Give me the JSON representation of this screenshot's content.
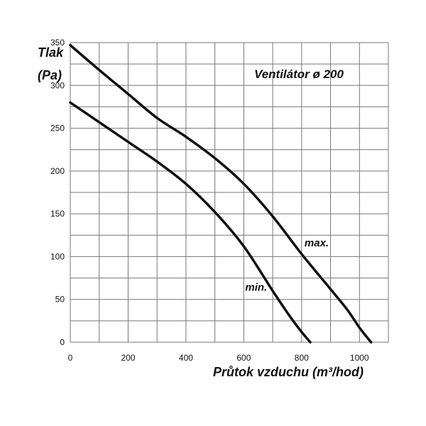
{
  "chart_data": {
    "type": "line",
    "title": "Ventilátor ø 200",
    "xlabel": "Průtok vzduchu (m³/hod)",
    "ylabel_line1": "Tlak",
    "ylabel_line2": "(Pa)",
    "xlim": [
      0,
      1100
    ],
    "ylim": [
      0,
      350
    ],
    "x_ticks": [
      "0",
      "200",
      "400",
      "600",
      "800",
      "1000"
    ],
    "x_tick_values": [
      0,
      200,
      400,
      600,
      800,
      1000
    ],
    "y_ticks": [
      "0",
      "50",
      "100",
      "150",
      "200",
      "250",
      "300",
      "350"
    ],
    "y_tick_values": [
      0,
      50,
      100,
      150,
      200,
      250,
      300,
      350
    ],
    "grid": true,
    "grid_step_x": 100,
    "grid_step_y": 25,
    "series": [
      {
        "name": "max.",
        "label_at": [
          810,
          112
        ],
        "x": [
          0,
          100,
          200,
          300,
          400,
          500,
          600,
          700,
          800,
          900,
          960,
          1000,
          1040
        ],
        "y": [
          347,
          318,
          290,
          262,
          240,
          215,
          185,
          147,
          103,
          62,
          37,
          17,
          0
        ]
      },
      {
        "name": "min.",
        "label_at": [
          605,
          60
        ],
        "x": [
          0,
          100,
          200,
          300,
          400,
          500,
          600,
          700,
          760,
          800,
          830
        ],
        "y": [
          280,
          257,
          234,
          211,
          185,
          152,
          112,
          60,
          30,
          12,
          0
        ]
      }
    ],
    "color": "#111111"
  }
}
